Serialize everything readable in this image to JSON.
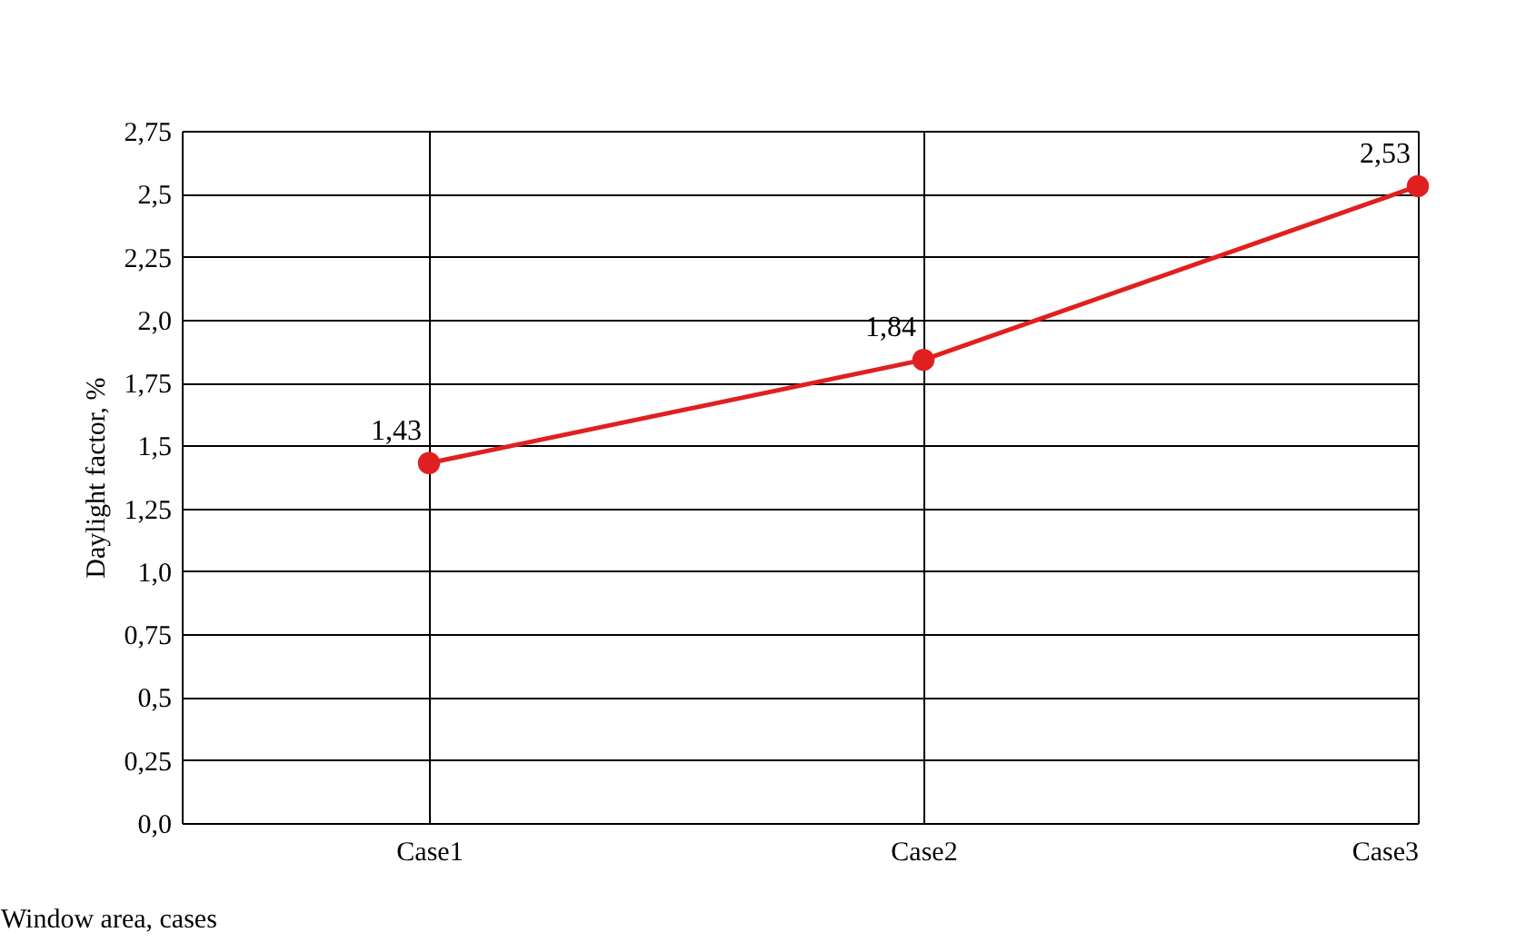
{
  "chart_data": {
    "type": "line",
    "xlabel": "Window area, cases",
    "ylabel": "Daylight factor, %",
    "categories": [
      "Case1",
      "Case2",
      "Case3"
    ],
    "series": [
      {
        "color": "#e02020",
        "values": [
          1.43,
          1.84,
          2.53
        ],
        "value_labels": [
          "1,43",
          "1,84",
          "2,53"
        ]
      }
    ],
    "ylim": [
      0,
      2.75
    ],
    "yticks": [
      {
        "value": 0,
        "label": "0,0"
      },
      {
        "value": 0.25,
        "label": "0,25"
      },
      {
        "value": 0.5,
        "label": "0,5"
      },
      {
        "value": 0.75,
        "label": "0,75"
      },
      {
        "value": 1,
        "label": "1,0"
      },
      {
        "value": 1.25,
        "label": "1,25"
      },
      {
        "value": 1.5,
        "label": "1,5"
      },
      {
        "value": 1.75,
        "label": "1,75"
      },
      {
        "value": 2,
        "label": "2,0"
      },
      {
        "value": 2.25,
        "label": "2,25"
      },
      {
        "value": 2.5,
        "label": "2,5"
      },
      {
        "value": 2.75,
        "label": "2,75"
      }
    ],
    "grid": true,
    "marker": "circle",
    "line_style": "solid"
  }
}
